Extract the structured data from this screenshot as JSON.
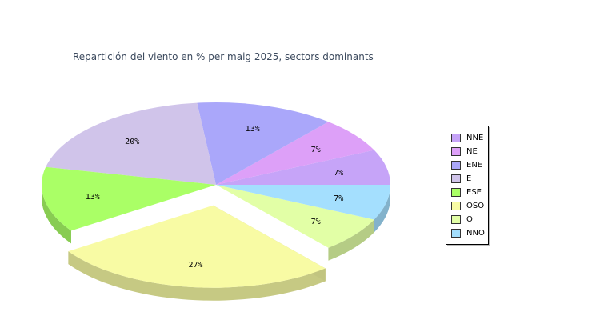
{
  "chart_data": {
    "type": "pie",
    "title": "Repartición del viento en % per maig 2025, sectors dominants",
    "categories": [
      "NNE",
      "NE",
      "ENE",
      "E",
      "ESE",
      "OSO",
      "O",
      "NNO"
    ],
    "values": [
      7,
      7,
      13,
      20,
      13,
      27,
      7,
      7
    ],
    "data_labels": [
      "7%",
      "7%",
      "13%",
      "20%",
      "13%",
      "27%",
      "7%",
      "7%"
    ],
    "colors": [
      "#c6a4f8",
      "#dda0f8",
      "#aaa7fa",
      "#d0c4ea",
      "#aaff66",
      "#f8fba4",
      "#e2ffa6",
      "#a4dffe"
    ],
    "exploded": "OSO",
    "legend_position": "right"
  }
}
